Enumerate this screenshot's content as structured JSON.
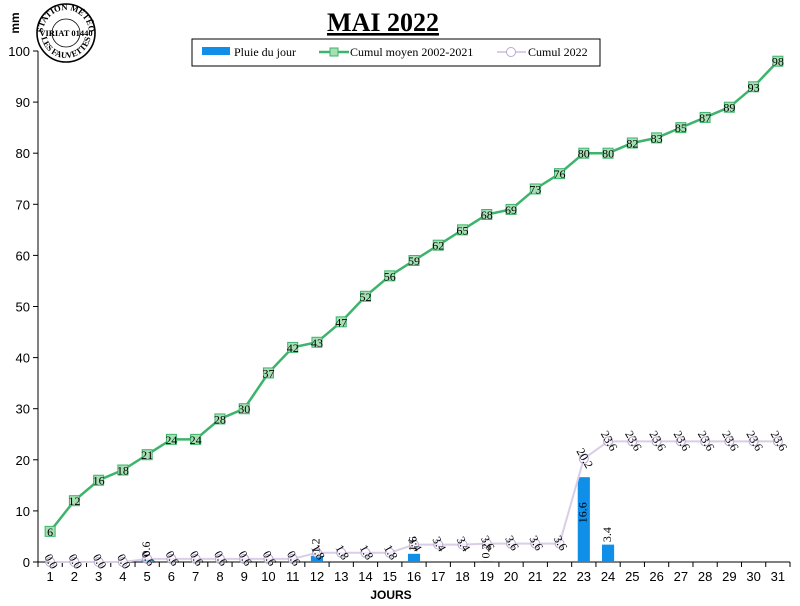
{
  "stamp": {
    "top": "STATION MÉTÉO",
    "middle": "VIRIAT 01440",
    "bottom": "LES FAUVETTES"
  },
  "colors": {
    "rain": "#0f8fe8",
    "cumul_mean": "#3db36b",
    "cumul_mean_marker": "#a7dfb4",
    "cumul_2022": "#d9cde8"
  },
  "chart_data": {
    "type": "bar",
    "title": "MAI 2022",
    "xlabel": "JOURS",
    "ylabel": "mm",
    "ylim": [
      0,
      100
    ],
    "yticks": [
      0,
      10,
      20,
      30,
      40,
      50,
      60,
      70,
      80,
      90,
      100
    ],
    "legend_position": "top",
    "categories": [
      "1",
      "2",
      "3",
      "4",
      "5",
      "6",
      "7",
      "8",
      "9",
      "10",
      "11",
      "12",
      "13",
      "14",
      "15",
      "16",
      "17",
      "18",
      "19",
      "20",
      "21",
      "22",
      "23",
      "24",
      "25",
      "26",
      "27",
      "28",
      "29",
      "30",
      "31"
    ],
    "series": [
      {
        "name": "Pluie du jour",
        "type": "bar",
        "values": [
          0,
          0,
          0,
          0,
          0.6,
          0,
          0,
          0,
          0,
          0,
          0,
          1.2,
          0,
          0,
          0,
          1.6,
          0,
          0,
          0.2,
          0,
          0,
          0,
          16.6,
          3.4,
          null,
          null,
          null,
          null,
          null,
          null,
          null
        ],
        "labels": [
          "",
          "",
          "",
          "",
          "0.6",
          "",
          "",
          "",
          "",
          "",
          "",
          "1.2",
          "",
          "",
          "",
          "1.6",
          "",
          "",
          "0.2",
          "",
          "",
          "",
          "16.6",
          "3.4",
          "",
          "",
          "",
          "",
          "",
          "",
          ""
        ]
      },
      {
        "name": "Cumul moyen 2002-2021",
        "type": "line",
        "values": [
          6,
          12,
          16,
          18,
          21,
          24,
          24,
          28,
          30,
          37,
          42,
          43,
          47,
          52,
          56,
          59,
          62,
          65,
          68,
          69,
          73,
          76,
          80,
          80,
          82,
          83,
          85,
          87,
          89,
          93,
          98
        ],
        "labels": [
          "6",
          "12",
          "16",
          "18",
          "21",
          "24",
          "24",
          "28",
          "30",
          "37",
          "42",
          "43",
          "47",
          "52",
          "56",
          "59",
          "62",
          "65",
          "68",
          "69",
          "73",
          "76",
          "80",
          "80",
          "82",
          "83",
          "85",
          "87",
          "89",
          "93",
          "98"
        ]
      },
      {
        "name": "Cumul 2022",
        "type": "line",
        "values": [
          0,
          0,
          0,
          0,
          0.6,
          0.6,
          0.6,
          0.6,
          0.6,
          0.6,
          0.6,
          1.8,
          1.8,
          1.8,
          1.8,
          3.4,
          3.4,
          3.4,
          3.6,
          3.6,
          3.6,
          3.6,
          20.2,
          23.6,
          23.6,
          23.6,
          23.6,
          23.6,
          23.6,
          23.6,
          23.6
        ],
        "labels": [
          "0.0",
          "0.0",
          "0.0",
          "0.0",
          "0.6",
          "0.6",
          "0.6",
          "0.6",
          "0.6",
          "0.6",
          "0.6",
          "1.8",
          "1.8",
          "1.8",
          "1.8",
          "3.4",
          "3.4",
          "3.4",
          "3.6",
          "3.6",
          "3.6",
          "3.6",
          "20.2",
          "23.6",
          "23.6",
          "23.6",
          "23.6",
          "23.6",
          "23.6",
          "23.6",
          "23.6"
        ]
      }
    ]
  }
}
